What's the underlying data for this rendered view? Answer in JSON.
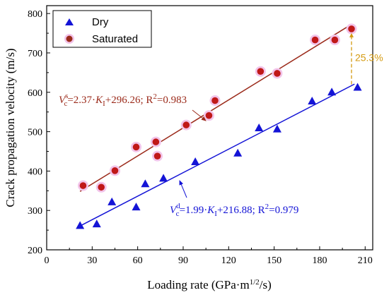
{
  "chart_data": {
    "type": "scatter",
    "xlabel": "Loading rate (GPa·m",
    "xlabel_sup": "1/2",
    "xlabel_end": "/s)",
    "ylabel": "Crack propagation velocity (m/s)",
    "xlim": [
      0,
      215
    ],
    "ylim": [
      200,
      820
    ],
    "x_ticks": [
      0,
      30,
      60,
      90,
      120,
      150,
      180,
      210
    ],
    "y_ticks": [
      200,
      300,
      400,
      500,
      600,
      700,
      800
    ],
    "grid": false,
    "legend_position": "top-left",
    "series": [
      {
        "name": "Dry",
        "marker": "triangle",
        "color": "#1414d6",
        "points": [
          [
            22,
            262
          ],
          [
            33,
            266
          ],
          [
            43,
            322
          ],
          [
            59,
            309
          ],
          [
            65,
            368
          ],
          [
            77,
            382
          ],
          [
            98,
            424
          ],
          [
            126,
            446
          ],
          [
            140,
            510
          ],
          [
            152,
            507
          ],
          [
            175,
            578
          ],
          [
            188,
            601
          ],
          [
            205,
            613
          ]
        ]
      },
      {
        "name": "Saturated",
        "marker": "circle",
        "color": "#c01818",
        "halo_color": "#f2c4ea",
        "points": [
          [
            24,
            363
          ],
          [
            36,
            359
          ],
          [
            45,
            401
          ],
          [
            59,
            461
          ],
          [
            72,
            474
          ],
          [
            73,
            438
          ],
          [
            92,
            517
          ],
          [
            107,
            541
          ],
          [
            111,
            579
          ],
          [
            141,
            653
          ],
          [
            152,
            648
          ],
          [
            177,
            733
          ],
          [
            190,
            733
          ],
          [
            201,
            761
          ]
        ]
      }
    ],
    "fits": [
      {
        "series": "Saturated",
        "color": "#9b2a1a",
        "slope": 2.37,
        "intercept": 296.26,
        "x_range": [
          22,
          201
        ],
        "label_prefix": "V",
        "label_sup": "s",
        "label_sub": "c",
        "label_mid": "=2.37·",
        "label_K": "K",
        "label_K_sub": "I",
        "label_end": "+296.26; R",
        "label_R_sup": "2",
        "label_tail": "=0.983",
        "text_color": "#9b2a1a"
      },
      {
        "series": "Dry",
        "color": "#1414d6",
        "slope": 1.99,
        "intercept": 216.88,
        "x_range": [
          22,
          203
        ],
        "label_prefix": "V",
        "label_sup": "d",
        "label_sub": "c",
        "label_mid": "=1.99·",
        "label_K": "K",
        "label_K_sub": "I",
        "label_end": "+216.88; R",
        "label_R_sup": "2",
        "label_tail": "=0.979",
        "text_color": "#1414d6"
      }
    ],
    "annotation": {
      "text": "25.3%",
      "color": "#d49a10",
      "x": 201,
      "y_from": 620,
      "y_to": 761
    }
  }
}
